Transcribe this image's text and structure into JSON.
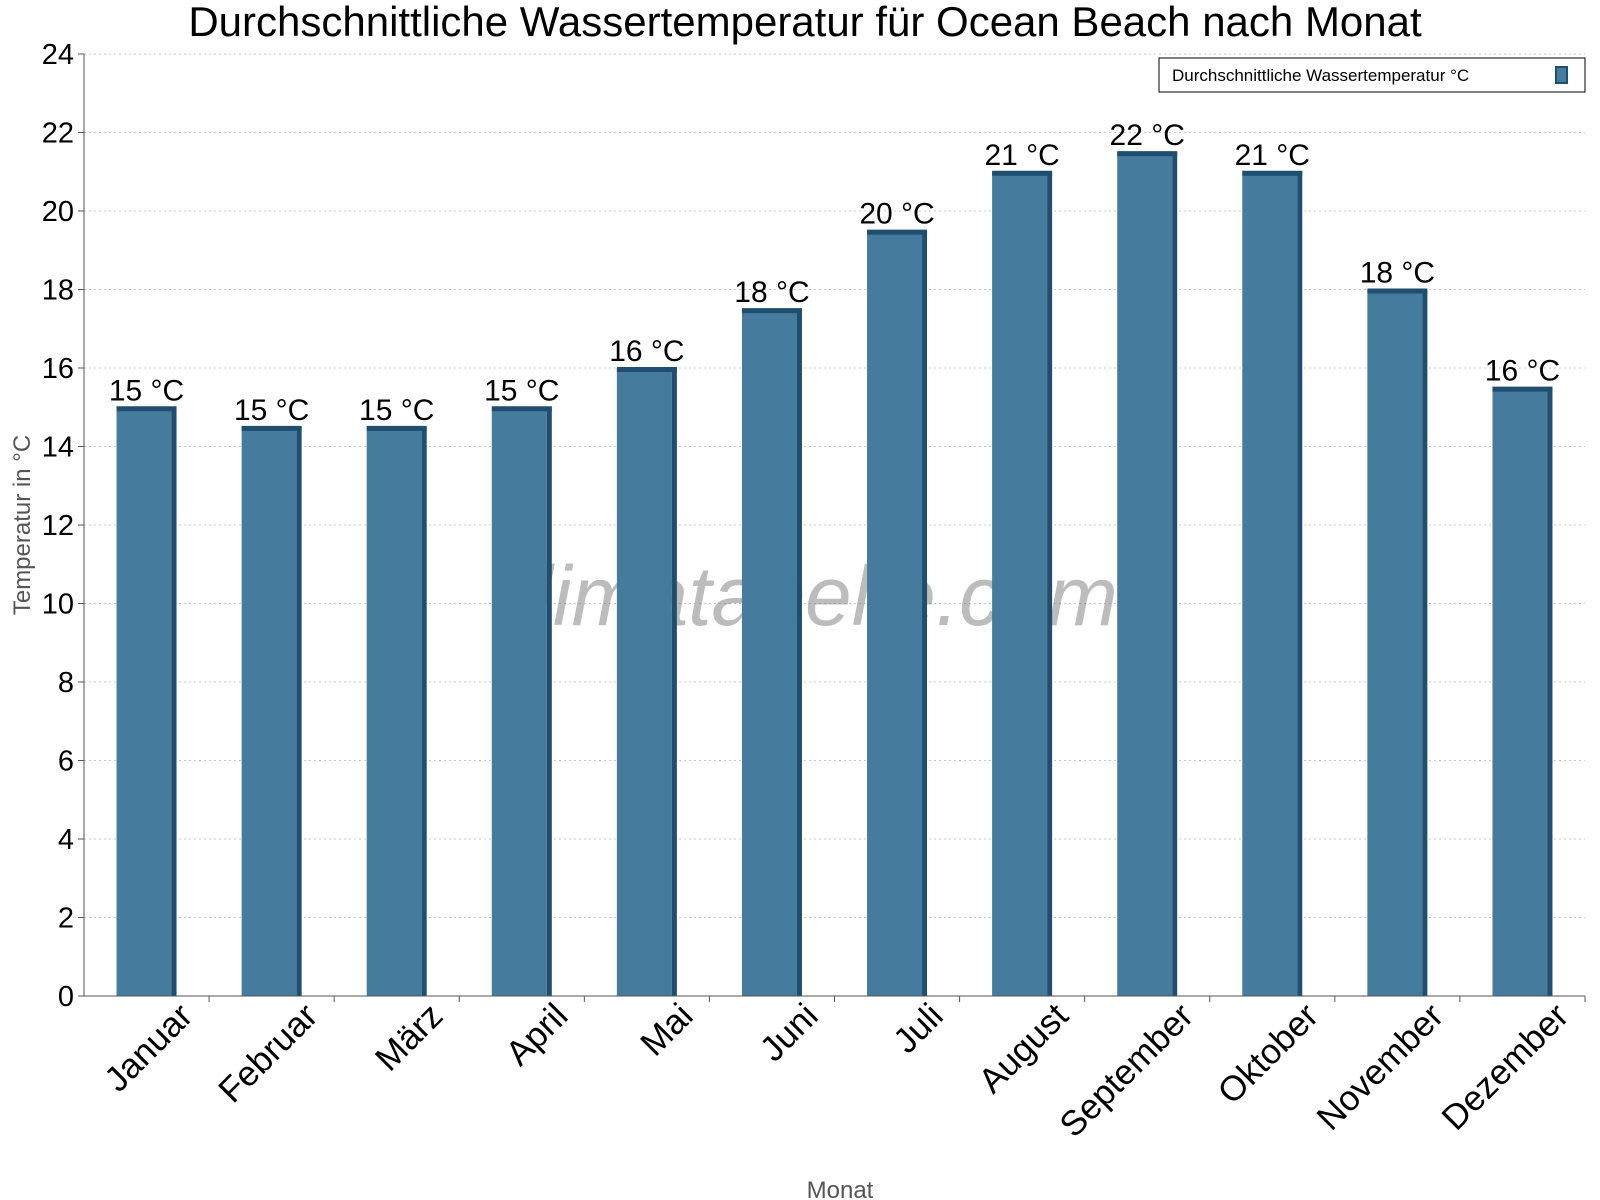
{
  "chart_data": {
    "type": "bar",
    "title": "Durchschnittliche Wassertemperatur für Ocean Beach nach Monat",
    "xlabel": "Monat",
    "ylabel": "Temperatur in °C",
    "categories": [
      "Januar",
      "Februar",
      "März",
      "April",
      "Mai",
      "Juni",
      "Juli",
      "August",
      "September",
      "Oktober",
      "November",
      "Dezember"
    ],
    "series": [
      {
        "name": "Durchschnittliche Wassertemperatur °C",
        "values": [
          15.0,
          14.5,
          14.5,
          15.0,
          16.0,
          17.5,
          19.5,
          21.0,
          21.5,
          21.0,
          18.0,
          15.5
        ],
        "labels": [
          "15 °C",
          "15 °C",
          "15 °C",
          "15 °C",
          "16 °C",
          "18 °C",
          "20 °C",
          "21 °C",
          "22 °C",
          "21 °C",
          "18 °C",
          "16 °C"
        ],
        "color": "#457b9d",
        "edge_color": "#1f4e6e"
      }
    ],
    "ylim": [
      0,
      24
    ],
    "yticks": [
      0,
      2,
      4,
      6,
      8,
      10,
      12,
      14,
      16,
      18,
      20,
      22,
      24
    ],
    "grid": true,
    "legend": "top-right"
  },
  "watermark": "klimatabelle.com"
}
